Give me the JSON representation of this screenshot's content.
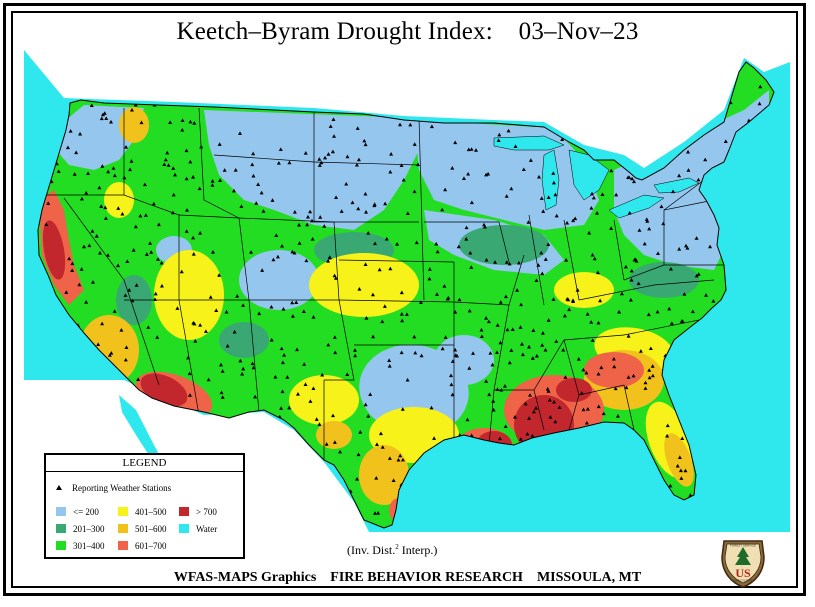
{
  "title": "Keetch–Byram Drought Index:    03–Nov–23",
  "map": {
    "colors": {
      "water": "#2ee8ee",
      "lte_200": "#95c6ee",
      "201_300": "#3aa872",
      "301_400": "#22dd22",
      "401_500": "#f6f21a",
      "501_600": "#f2c21c",
      "601_700": "#ef6348",
      "gt_700": "#c1272d",
      "outside": "#ffffff",
      "boundary": "#000000",
      "station": "#000000"
    }
  },
  "legend": {
    "title": "LEGEND",
    "stations_label": "Reporting Weather Stations",
    "items": [
      {
        "label": "<= 200",
        "color": "#95c6ee",
        "col": 0,
        "row": 0
      },
      {
        "label": "201–300",
        "color": "#3aa872",
        "col": 0,
        "row": 1
      },
      {
        "label": "301–400",
        "color": "#22dd22",
        "col": 0,
        "row": 2
      },
      {
        "label": "401–500",
        "color": "#f6f21a",
        "col": 1,
        "row": 0
      },
      {
        "label": "501–600",
        "color": "#f2c21c",
        "col": 1,
        "row": 1
      },
      {
        "label": "601–700",
        "color": "#ef6348",
        "col": 1,
        "row": 2
      },
      {
        "label": "> 700",
        "color": "#c1272d",
        "col": 2,
        "row": 0
      },
      {
        "label": "Water",
        "color": "#2ee8ee",
        "col": 2,
        "row": 1
      }
    ]
  },
  "interp": {
    "prefix": "(Inv. Dist.",
    "power": "2",
    "suffix": " Interp.)"
  },
  "footer": "WFAS-MAPS Graphics    FIRE BEHAVIOR RESEARCH    MISSOULA, MT",
  "logo": {
    "top_text": "FOREST SERVICE",
    "main_text": "US",
    "bottom_text": "AGRICULTURE"
  }
}
